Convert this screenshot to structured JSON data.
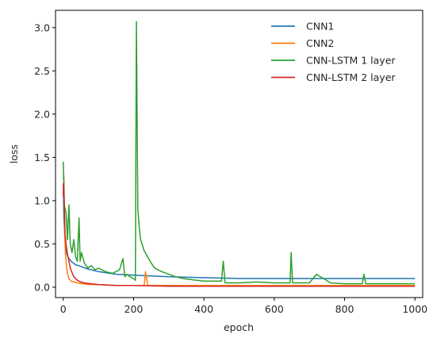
{
  "chart_data": {
    "type": "line",
    "xlabel": "epoch",
    "ylabel": "loss",
    "xlim": [
      -22,
      1022
    ],
    "ylim": [
      -0.12,
      3.2
    ],
    "xticks": [
      0,
      200,
      400,
      600,
      800,
      1000
    ],
    "yticks": [
      0.0,
      0.5,
      1.0,
      1.5,
      2.0,
      2.5,
      3.0
    ],
    "xtick_labels": [
      "0",
      "200",
      "400",
      "600",
      "800",
      "1000"
    ],
    "ytick_labels": [
      "0.0",
      "0.5",
      "1.0",
      "1.5",
      "2.0",
      "2.5",
      "3.0"
    ],
    "grid": false,
    "legend_position": "top-right",
    "series": [
      {
        "name": "CNN1",
        "color": "#1f77b4",
        "x": [
          0,
          2,
          5,
          8,
          12,
          18,
          25,
          35,
          50,
          70,
          100,
          150,
          200,
          300,
          400,
          500,
          600,
          700,
          800,
          900,
          1000
        ],
        "y": [
          1.2,
          0.8,
          0.55,
          0.42,
          0.36,
          0.32,
          0.29,
          0.26,
          0.24,
          0.21,
          0.18,
          0.15,
          0.14,
          0.12,
          0.11,
          0.1,
          0.1,
          0.1,
          0.1,
          0.1,
          0.1
        ]
      },
      {
        "name": "CNN2",
        "color": "#ff7f0e",
        "x": [
          0,
          2,
          4,
          6,
          9,
          12,
          16,
          22,
          30,
          40,
          55,
          75,
          100,
          150,
          200,
          230,
          234,
          240,
          300,
          400,
          500,
          600,
          700,
          800,
          900,
          1000
        ],
        "y": [
          1.25,
          1.29,
          0.65,
          0.4,
          0.25,
          0.16,
          0.1,
          0.07,
          0.06,
          0.05,
          0.04,
          0.03,
          0.03,
          0.02,
          0.02,
          0.02,
          0.18,
          0.02,
          0.02,
          0.02,
          0.02,
          0.02,
          0.02,
          0.02,
          0.02,
          0.02
        ]
      },
      {
        "name": "CNN-LSTM 1 layer",
        "color": "#2ca02c",
        "x": [
          0,
          3,
          8,
          12,
          16,
          20,
          25,
          30,
          35,
          40,
          45,
          48,
          52,
          60,
          70,
          80,
          90,
          100,
          120,
          140,
          160,
          170,
          175,
          180,
          190,
          200,
          205,
          208,
          212,
          216,
          220,
          230,
          240,
          250,
          260,
          280,
          300,
          320,
          340,
          360,
          380,
          400,
          450,
          455,
          460,
          500,
          550,
          600,
          645,
          648,
          652,
          700,
          720,
          760,
          800,
          850,
          855,
          860,
          900,
          950,
          1000
        ],
        "y": [
          1.45,
          0.95,
          0.85,
          0.55,
          0.95,
          0.5,
          0.4,
          0.55,
          0.35,
          0.3,
          0.8,
          0.3,
          0.4,
          0.28,
          0.22,
          0.25,
          0.2,
          0.22,
          0.18,
          0.16,
          0.2,
          0.33,
          0.12,
          0.15,
          0.12,
          0.1,
          0.08,
          3.07,
          0.9,
          0.7,
          0.55,
          0.42,
          0.35,
          0.28,
          0.22,
          0.18,
          0.15,
          0.12,
          0.1,
          0.09,
          0.08,
          0.07,
          0.07,
          0.3,
          0.05,
          0.05,
          0.06,
          0.05,
          0.05,
          0.4,
          0.05,
          0.05,
          0.15,
          0.05,
          0.04,
          0.04,
          0.15,
          0.04,
          0.04,
          0.04,
          0.04
        ]
      },
      {
        "name": "CNN-LSTM 2 layer",
        "color": "#d62728",
        "x": [
          0,
          1,
          3,
          5,
          8,
          12,
          16,
          20,
          25,
          30,
          40,
          50,
          60,
          80,
          100,
          150,
          200,
          300,
          400,
          500,
          600,
          700,
          800,
          900,
          1000
        ],
        "y": [
          1.05,
          1.2,
          0.9,
          0.62,
          0.5,
          0.38,
          0.3,
          0.22,
          0.17,
          0.12,
          0.08,
          0.06,
          0.05,
          0.04,
          0.03,
          0.02,
          0.02,
          0.01,
          0.01,
          0.01,
          0.01,
          0.01,
          0.01,
          0.01,
          0.01
        ]
      }
    ]
  }
}
